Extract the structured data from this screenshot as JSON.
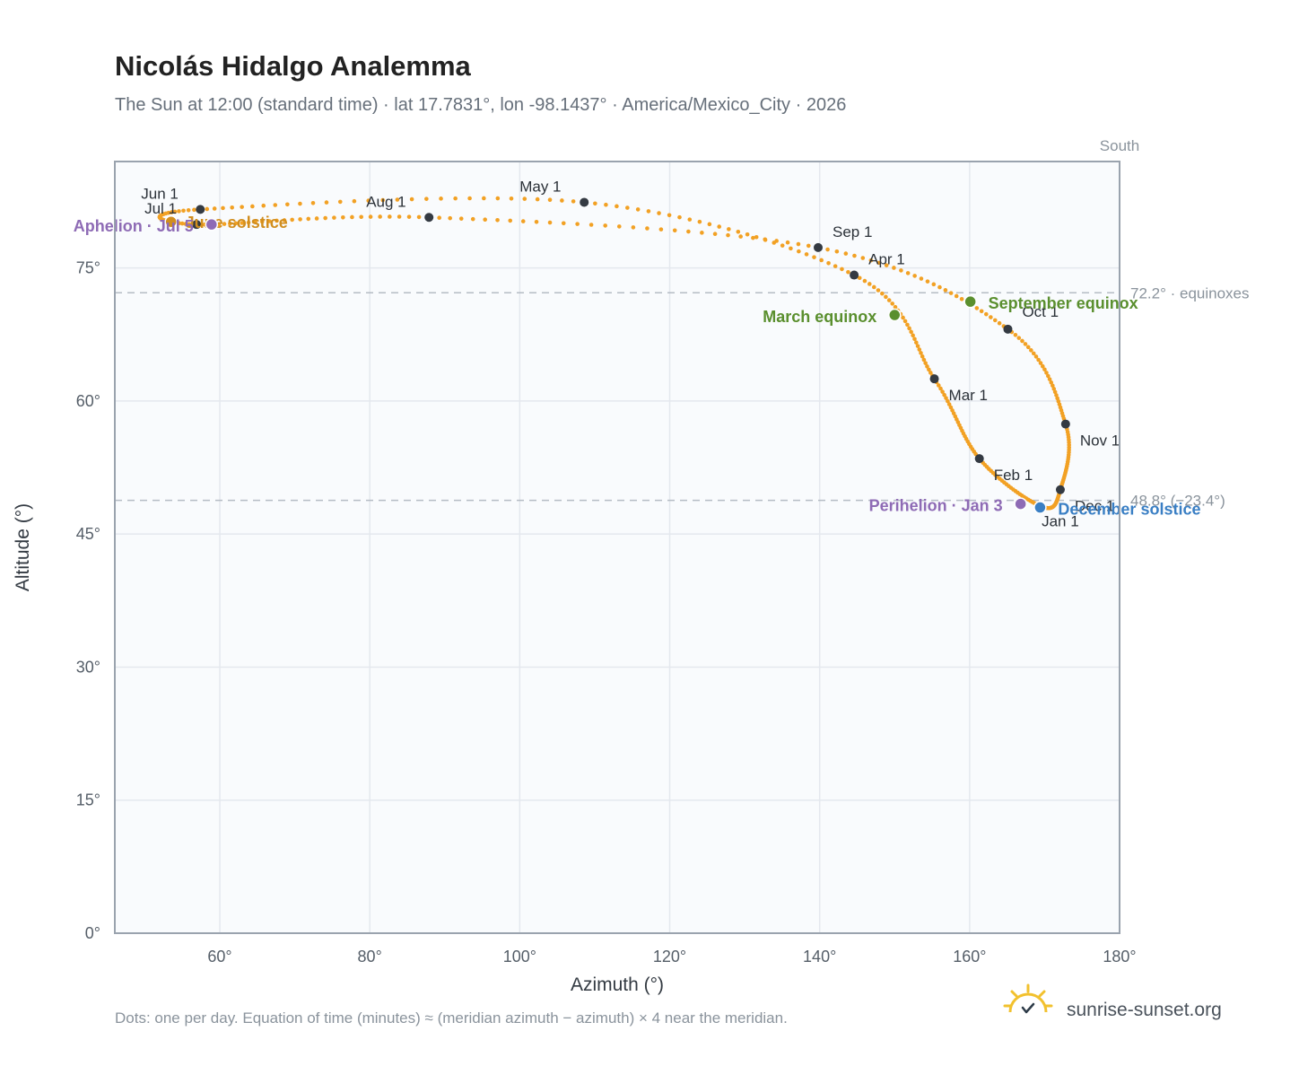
{
  "header": {
    "title": "Nicolás Hidalgo Analemma",
    "subtitle": "The Sun at 12:00 (standard time) · lat 17.7831°, lon -98.1437° · America/Mexico_City · 2026"
  },
  "footer": {
    "note": "Dots: one per day. Equation of time (minutes) ≈ (meridian azimuth − azimuth) × 4 near the meridian.",
    "brand": "sunrise-sunset.org"
  },
  "colors": {
    "curve": "#f2a124",
    "month_dot": "#343a42",
    "equinox": "#5a8f2e",
    "solstice_summer": "#d18e1f",
    "solstice_winter": "#3a7fc4",
    "apsis": "#8e6bb5",
    "reference_line": "#b5bcc4",
    "plot_background": "#f9fbfd",
    "grid": "#e4e8ee",
    "frame": "#9aa3ae"
  },
  "chart_data": {
    "type": "scatter",
    "xlabel": "Azimuth (°)",
    "ylabel": "Altitude (°)",
    "xlim": [
      46,
      180
    ],
    "ylim": [
      0,
      87
    ],
    "x_ticks": [
      "60°",
      "80°",
      "100°",
      "120°",
      "140°",
      "160°",
      "180°"
    ],
    "x_tick_values": [
      60,
      80,
      100,
      120,
      140,
      160,
      180
    ],
    "y_ticks": [
      "0°",
      "15°",
      "30°",
      "45°",
      "60°",
      "75°"
    ],
    "y_tick_values": [
      0,
      15,
      30,
      45,
      60,
      75
    ],
    "grid": true,
    "meridian": {
      "azimuth": 180,
      "label": "South"
    },
    "reference_lines": [
      {
        "altitude": 72.2,
        "label": "72.2° · equinoxes"
      },
      {
        "altitude": 48.8,
        "label": "48.8° (−23.4°)"
      }
    ],
    "month_markers": [
      {
        "label": "Jan 1",
        "az": 169.6,
        "alt": 48.1
      },
      {
        "label": "Feb 1",
        "az": 161.3,
        "alt": 53.5
      },
      {
        "label": "Mar 1",
        "az": 155.3,
        "alt": 62.5
      },
      {
        "label": "Apr 1",
        "az": 144.6,
        "alt": 74.2
      },
      {
        "label": "May 1",
        "az": 108.6,
        "alt": 82.4
      },
      {
        "label": "Jun 1",
        "az": 57.4,
        "alt": 81.6
      },
      {
        "label": "Jul 1",
        "az": 56.9,
        "alt": 79.9
      },
      {
        "label": "Aug 1",
        "az": 87.9,
        "alt": 80.7
      },
      {
        "label": "Sep 1",
        "az": 139.8,
        "alt": 77.3
      },
      {
        "label": "Oct 1",
        "az": 165.1,
        "alt": 68.1
      },
      {
        "label": "Nov 1",
        "az": 172.8,
        "alt": 57.4
      },
      {
        "label": "Dec 1",
        "az": 172.1,
        "alt": 50.0
      }
    ],
    "events": [
      {
        "label": "March equinox",
        "az": 150.0,
        "alt": 69.7,
        "kind": "equinox"
      },
      {
        "label": "June solstice",
        "az": 53.5,
        "alt": 80.2,
        "kind": "solstice_summer"
      },
      {
        "label": "September equinox",
        "az": 160.1,
        "alt": 71.2,
        "kind": "equinox"
      },
      {
        "label": "December solstice",
        "az": 169.4,
        "alt": 48.0,
        "kind": "solstice_winter"
      },
      {
        "label": "Perihelion · Jan 3",
        "az": 166.8,
        "alt": 48.4,
        "kind": "apsis"
      },
      {
        "label": "Aphelion · Jul 5",
        "az": 58.9,
        "alt": 79.9,
        "kind": "apsis"
      }
    ]
  }
}
